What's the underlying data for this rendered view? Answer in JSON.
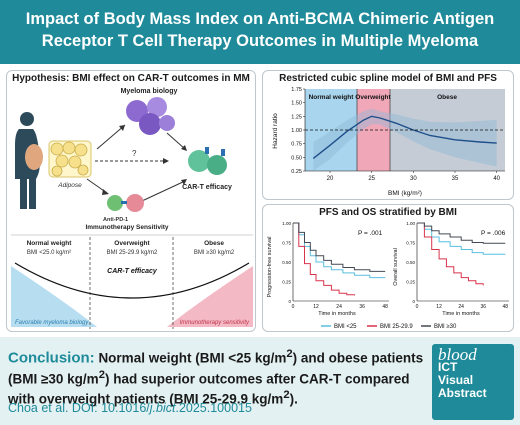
{
  "title": {
    "line1": "Impact of Body Mass Index on Anti-BCMA Chimeric Antigen",
    "line2": "Receptor T Cell Therapy Outcomes in Multiple Myeloma"
  },
  "hypothesis": {
    "title": "Hypothesis: BMI effect on CAR-T outcomes in MM",
    "myeloma_biology": "Myeloma biology",
    "adipose": "Adipose",
    "question": "?",
    "car_t_efficacy": "CAR-T efficacy",
    "anti_pd1": "Anti-PD-1",
    "immunotherapy_sensitivity": "Immunotherapy Sensitivity",
    "groups": [
      {
        "name": "Normal weight",
        "range": "BMI <25.0 kg/m²"
      },
      {
        "name": "Overweight",
        "range": "BMI 25-29.9 kg/m2"
      },
      {
        "name": "Obese",
        "range": "BMI ≥30 kg/m2"
      }
    ],
    "curve_label": "CAR-T efficacy",
    "favorable": "Favorable myeloma biology",
    "sensitivity": "Immunotherapy sensitivity"
  },
  "spline": {
    "title": "Restricted cubic spline model of BMI and PFS",
    "regions": [
      "Normal weight",
      "Overweight",
      "Obese"
    ],
    "ylabel": "Hazard ratio",
    "xlabel": "BMI (kg/m²)",
    "x_ticks": [
      "20",
      "25",
      "30",
      "35",
      "40"
    ],
    "y_ticks": [
      "1.75",
      "1.50",
      "1.25",
      "1.00",
      "0.75",
      "0.50",
      "0.25"
    ]
  },
  "chart_data": [
    {
      "type": "line",
      "title": "Restricted cubic spline model of BMI and PFS",
      "xlabel": "BMI (kg/m²)",
      "ylabel": "Hazard ratio",
      "xlim": [
        17,
        41
      ],
      "ylim": [
        0.25,
        1.75
      ],
      "x": [
        18,
        20,
        22,
        24,
        25,
        26,
        28,
        30,
        32,
        35,
        38,
        40
      ],
      "series": [
        {
          "values": [
            0.48,
            0.72,
            0.97,
            1.18,
            1.25,
            1.22,
            1.12,
            1.0,
            0.9,
            0.82,
            0.78,
            0.76
          ]
        }
      ],
      "reference_line": 1.0,
      "regions": [
        {
          "name": "Normal weight",
          "from": 17,
          "to": 25,
          "color": "#a9d6ee"
        },
        {
          "name": "Overweight",
          "from": 25,
          "to": 30,
          "color": "#f0a8b8"
        },
        {
          "name": "Obese",
          "from": 30,
          "to": 41,
          "color": "#c5ccd6"
        }
      ]
    },
    {
      "type": "line",
      "title": "PFS and OS stratified by BMI",
      "ylabel": "Progression-free survival",
      "xlabel": "Time in months",
      "x_ticks": [
        0,
        12,
        24,
        36,
        48
      ],
      "y_ticks": [
        "0",
        "0.25",
        "0.50",
        "0.75",
        "1.00"
      ],
      "xlim": [
        0,
        50
      ],
      "ylim": [
        0,
        1
      ],
      "annotation": "P = .001",
      "series": [
        {
          "name": "BMI <25",
          "color": "#5bbfe0",
          "x": [
            0,
            3,
            6,
            9,
            12,
            16,
            20,
            26,
            32,
            40,
            48
          ],
          "values": [
            1.0,
            0.85,
            0.7,
            0.58,
            0.5,
            0.44,
            0.4,
            0.36,
            0.33,
            0.3,
            0.3
          ]
        },
        {
          "name": "BMI 25-29.9",
          "color": "#d9334a",
          "x": [
            0,
            3,
            6,
            9,
            12,
            16,
            20,
            24,
            28,
            32
          ],
          "values": [
            1.0,
            0.7,
            0.48,
            0.34,
            0.26,
            0.2,
            0.14,
            0.1,
            0.08,
            0.07
          ]
        },
        {
          "name": "BMI ≥30",
          "color": "#444a55",
          "x": [
            0,
            3,
            6,
            9,
            12,
            16,
            20,
            26,
            32,
            40,
            48
          ],
          "values": [
            1.0,
            0.88,
            0.75,
            0.65,
            0.58,
            0.52,
            0.47,
            0.43,
            0.4,
            0.38,
            0.38
          ]
        }
      ]
    },
    {
      "type": "line",
      "ylabel": "Overall survival",
      "xlabel": "Time in months",
      "x_ticks": [
        0,
        12,
        24,
        36,
        48
      ],
      "y_ticks": [
        "0",
        "0.25",
        "0.50",
        "0.75",
        "1.00"
      ],
      "xlim": [
        0,
        50
      ],
      "ylim": [
        0,
        1
      ],
      "annotation": "P = .006",
      "series": [
        {
          "name": "BMI <25",
          "color": "#5bbfe0",
          "x": [
            0,
            4,
            8,
            12,
            18,
            24,
            30,
            36,
            42,
            48
          ],
          "values": [
            1.0,
            0.92,
            0.82,
            0.76,
            0.7,
            0.66,
            0.62,
            0.6,
            0.6,
            0.6
          ]
        },
        {
          "name": "BMI 25-29.9",
          "color": "#d9334a",
          "x": [
            0,
            4,
            8,
            12,
            16,
            20,
            24,
            28,
            32,
            36
          ],
          "values": [
            1.0,
            0.82,
            0.66,
            0.54,
            0.44,
            0.36,
            0.3,
            0.26,
            0.22,
            0.2
          ]
        },
        {
          "name": "BMI ≥30",
          "color": "#444a55",
          "x": [
            0,
            4,
            8,
            12,
            18,
            24,
            30,
            36,
            42,
            48
          ],
          "values": [
            1.0,
            0.96,
            0.9,
            0.86,
            0.82,
            0.78,
            0.75,
            0.74,
            0.74,
            0.74
          ]
        }
      ]
    }
  ],
  "survival": {
    "title": "PFS and OS stratified by BMI",
    "pfs_ylabel": "Progression-free survival",
    "os_ylabel": "Overall survival",
    "xlabel": "Time in months",
    "pfs_p": "P = .001",
    "os_p": "P = .006",
    "x_ticks": [
      "0",
      "12",
      "24",
      "36",
      "48"
    ],
    "y_ticks": [
      "0",
      "0.25",
      "0.50",
      "0.75",
      "1.00"
    ],
    "legend": [
      "BMI <25",
      "BMI 25-29.9",
      "BMI ≥30"
    ]
  },
  "conclusion": {
    "label": "Conclusion:",
    "text1": "Normal weight (BMI <25 kg/m",
    "text2": ") and obese patients (BMI ≥30 kg/m",
    "text3": ") had superior outcomes after CAR-T compared with overweight patients (BMI 25-29.9 kg/m",
    "text4": ").",
    "sup": "2"
  },
  "citation": {
    "prefix": "Choa et al. DOI: 10.1016/",
    "journal": "j.bict",
    "suffix": ".2025.100015"
  },
  "badge": {
    "brand": "blood",
    "line1": "ICT",
    "line2": "Visual",
    "line3": "Abstract"
  },
  "colors": {
    "teal": "#1f8b9a",
    "normal": "#5bbfe0",
    "overweight": "#d9334a",
    "obese": "#444a55",
    "bottom_bg": "#e3f1f2"
  }
}
